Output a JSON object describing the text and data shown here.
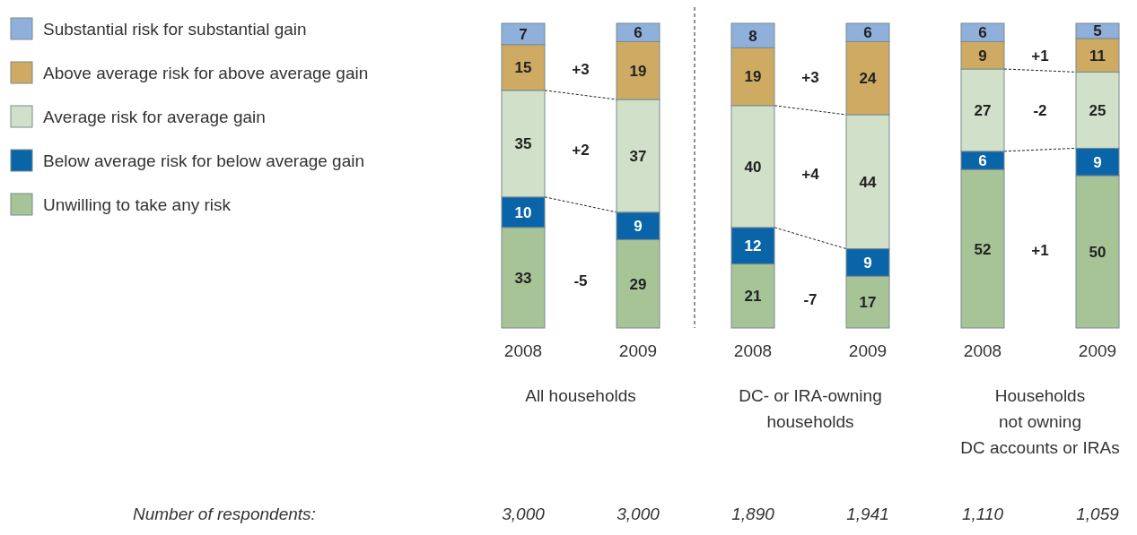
{
  "chart_data": [
    {
      "type": "bar",
      "stacked": true,
      "xlabel": "All households",
      "categories": [
        "2008",
        "2009"
      ],
      "ylim": [
        0,
        100
      ],
      "tick_labels": "x",
      "data_labels": true,
      "legend": "left",
      "series": [
        {
          "name": "Unwilling to take any risk",
          "color": "#a7c496",
          "values": [
            33,
            29
          ]
        },
        {
          "name": "Below average risk for below average gain",
          "color": "#0a64a8",
          "values": [
            10,
            9
          ]
        },
        {
          "name": "Average risk for average gain",
          "color": "#d1e0c8",
          "values": [
            35,
            37
          ]
        },
        {
          "name": "Above average risk for above average gain",
          "color": "#ceaa62",
          "values": [
            15,
            19
          ]
        },
        {
          "name": "Substantial risk for substantial gain",
          "color": "#8fb0da",
          "values": [
            7,
            6
          ]
        }
      ],
      "annotations": [
        "+3",
        "+2",
        "-5",
        "Number of respondents:",
        "3,000",
        "3,000"
      ]
    },
    {
      "type": "bar",
      "stacked": true,
      "xlabel": "DC- or IRA-owning\nhouseholds",
      "categories": [
        "2008",
        "2009"
      ],
      "ylim": [
        0,
        100
      ],
      "tick_labels": "x",
      "data_labels": true,
      "series": [
        {
          "color": "#a7c496",
          "values": [
            21,
            17
          ]
        },
        {
          "color": "#0a64a8",
          "values": [
            12,
            9
          ]
        },
        {
          "color": "#d1e0c8",
          "values": [
            40,
            44
          ]
        },
        {
          "color": "#ceaa62",
          "values": [
            19,
            24
          ]
        },
        {
          "color": "#8fb0da",
          "values": [
            8,
            6
          ]
        }
      ],
      "annotations": [
        "+3",
        "+4",
        "-7",
        "1,890",
        "1,941"
      ]
    },
    {
      "type": "bar",
      "stacked": true,
      "xlabel": "Households\nnot owning\nDC accounts or IRAs",
      "categories": [
        "2008",
        "2009"
      ],
      "ylim": [
        0,
        100
      ],
      "tick_labels": "x",
      "data_labels": true,
      "series": [
        {
          "color": "#a7c496",
          "values": [
            52,
            50
          ]
        },
        {
          "color": "#0a64a8",
          "values": [
            6,
            9
          ]
        },
        {
          "color": "#d1e0c8",
          "values": [
            27,
            25
          ]
        },
        {
          "color": "#ceaa62",
          "values": [
            9,
            11
          ]
        },
        {
          "color": "#8fb0da",
          "values": [
            6,
            5
          ]
        }
      ],
      "annotations": [
        "+1",
        "-2",
        "+1",
        "1,110",
        "1,059"
      ]
    }
  ]
}
